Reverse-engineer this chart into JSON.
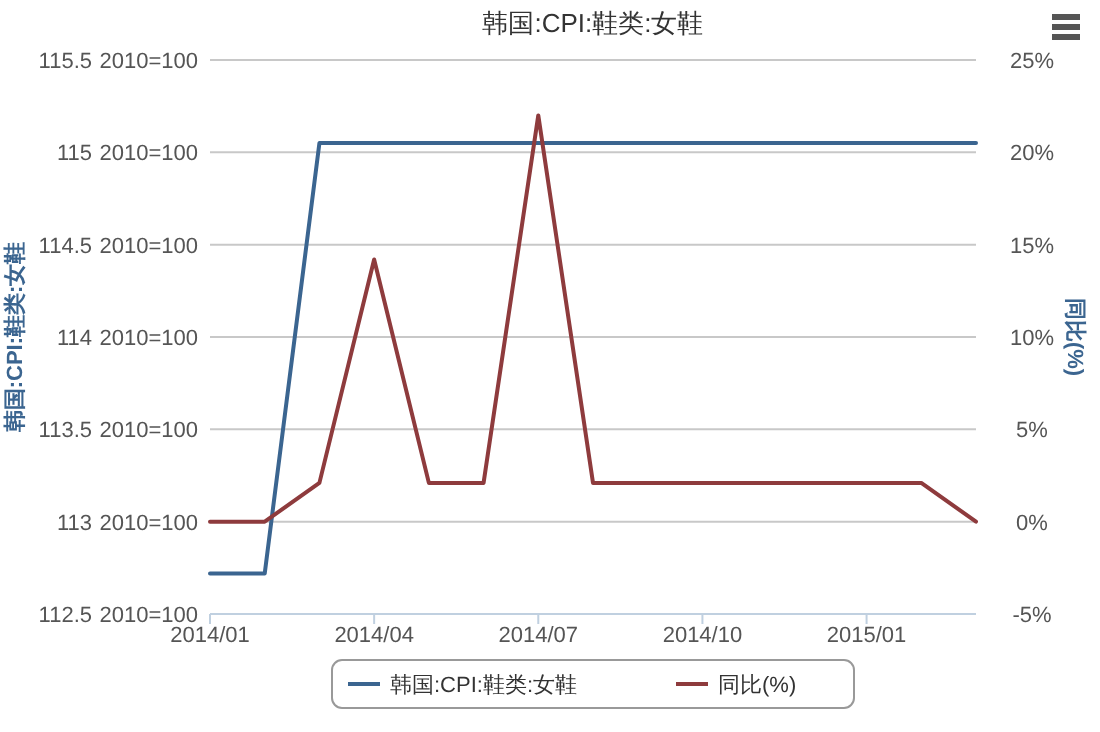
{
  "chart_data": {
    "type": "line",
    "title": "韩国:CPI:鞋类:女鞋",
    "ylabel": "韩国:CPI:鞋类:女鞋",
    "y2label": "同比(%)",
    "x": [
      "2014-01",
      "2014-02",
      "2014-03",
      "2014-04",
      "2014-05",
      "2014-06",
      "2014-07",
      "2014-08",
      "2014-09",
      "2014-10",
      "2014-11",
      "2014-12",
      "2015-01",
      "2015-02",
      "2015-03"
    ],
    "series": [
      {
        "name": "韩国:CPI:鞋类:女鞋",
        "color": "#3b6590",
        "values": [
          112.72,
          112.72,
          115.05,
          115.05,
          115.05,
          115.05,
          115.05,
          115.05,
          115.05,
          115.05,
          115.05,
          115.05,
          115.05,
          115.05,
          115.05
        ]
      },
      {
        "name": "同比(%)",
        "color": "#8e3b3d",
        "axis": "y2",
        "values": [
          0,
          0,
          2.1,
          14.2,
          2.1,
          2.1,
          22,
          2.1,
          2.1,
          2.1,
          2.1,
          2.1,
          2.1,
          2.1,
          0
        ]
      }
    ],
    "xlim": [
      "2014-01",
      "2015-03"
    ],
    "xticks": [
      {
        "value": "2014-01",
        "label": "2014/01"
      },
      {
        "value": "2014-04",
        "label": "2014/04"
      },
      {
        "value": "2014-07",
        "label": "2014/07"
      },
      {
        "value": "2014-10",
        "label": "2014/10"
      },
      {
        "value": "2015-01",
        "label": "2015/01"
      }
    ],
    "ylim": [
      112.5,
      115.5
    ],
    "yticks": [
      112.5,
      113,
      113.5,
      114,
      114.5,
      115,
      115.5
    ],
    "annotations": [
      "2010=100"
    ],
    "y2lim": [
      -5,
      25
    ],
    "y2ticks": [
      {
        "value": -5,
        "label": "-5%"
      },
      {
        "value": 0,
        "label": "0%"
      },
      {
        "value": 5,
        "label": "5%"
      },
      {
        "value": 10,
        "label": "10%"
      },
      {
        "value": 15,
        "label": "15%"
      },
      {
        "value": 20,
        "label": "20%"
      },
      {
        "value": 25,
        "label": "25%"
      }
    ],
    "grid": "y",
    "legend": "bottom",
    "marker": "none",
    "line_style": "solid"
  }
}
